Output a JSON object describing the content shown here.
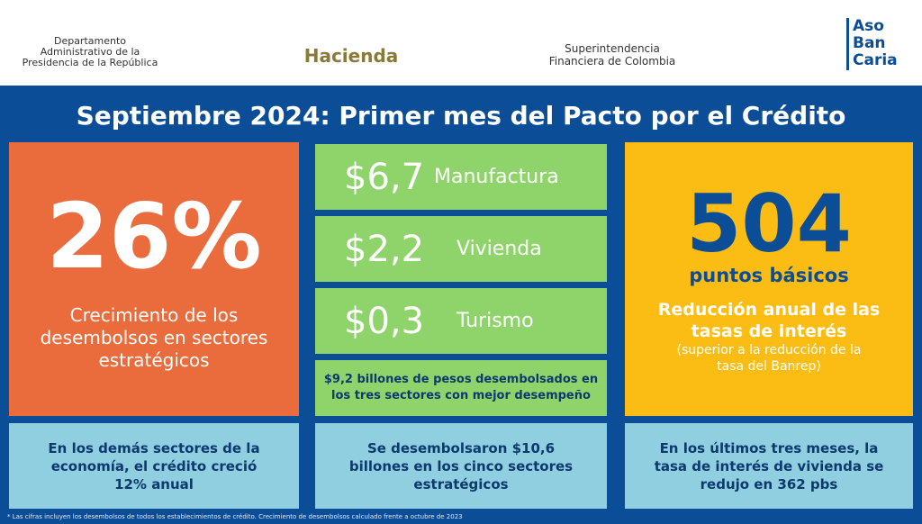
{
  "header": {
    "logos": [
      {
        "lines": [
          "Departamento",
          "Administrativo de la",
          "Presidencia de la República"
        ]
      },
      {
        "lines": [
          "Hacienda"
        ]
      },
      {
        "lines": [
          "Superintendencia",
          "Financiera de Colombia"
        ]
      },
      {
        "lines": [
          "Aso",
          "Ban",
          "Caria"
        ]
      }
    ]
  },
  "title": "Septiembre 2024: Primer mes del Pacto por el Crédito",
  "left": {
    "big": "26%",
    "caption": [
      "Crecimiento de los",
      "desembolsos en sectores",
      "estratégicos"
    ],
    "note": [
      "En los demás sectores de la",
      "economía, el crédito creció",
      "12% anual"
    ]
  },
  "middle": {
    "items": [
      {
        "amount": "$6,7",
        "sector": "Manufactura"
      },
      {
        "amount": "$2,2",
        "sector": "Vivienda"
      },
      {
        "amount": "$0,3",
        "sector": "Turismo"
      }
    ],
    "summary": [
      "$9,2 billones de pesos desembolsados en",
      "los tres sectores con mejor desempeño"
    ],
    "note": [
      "Se desembolsaron $10,6",
      "billones en los cinco sectores",
      "estratégicos"
    ]
  },
  "right": {
    "big": "504",
    "unit": "puntos básicos",
    "heading": [
      "Reducción anual de las",
      "tasas de interés"
    ],
    "detail": [
      "(superior a la reducción de la",
      "tasa del Banrep)"
    ],
    "note": [
      "En los últimos tres meses, la",
      "tasa de interés de vivienda se",
      "redujo en 362 pbs"
    ]
  },
  "footnote": "* Las cifras incluyen los desembolsos de todos los establecimientos de crédito. Crecimiento de desembolsos calculado frente a octubre de 2023"
}
